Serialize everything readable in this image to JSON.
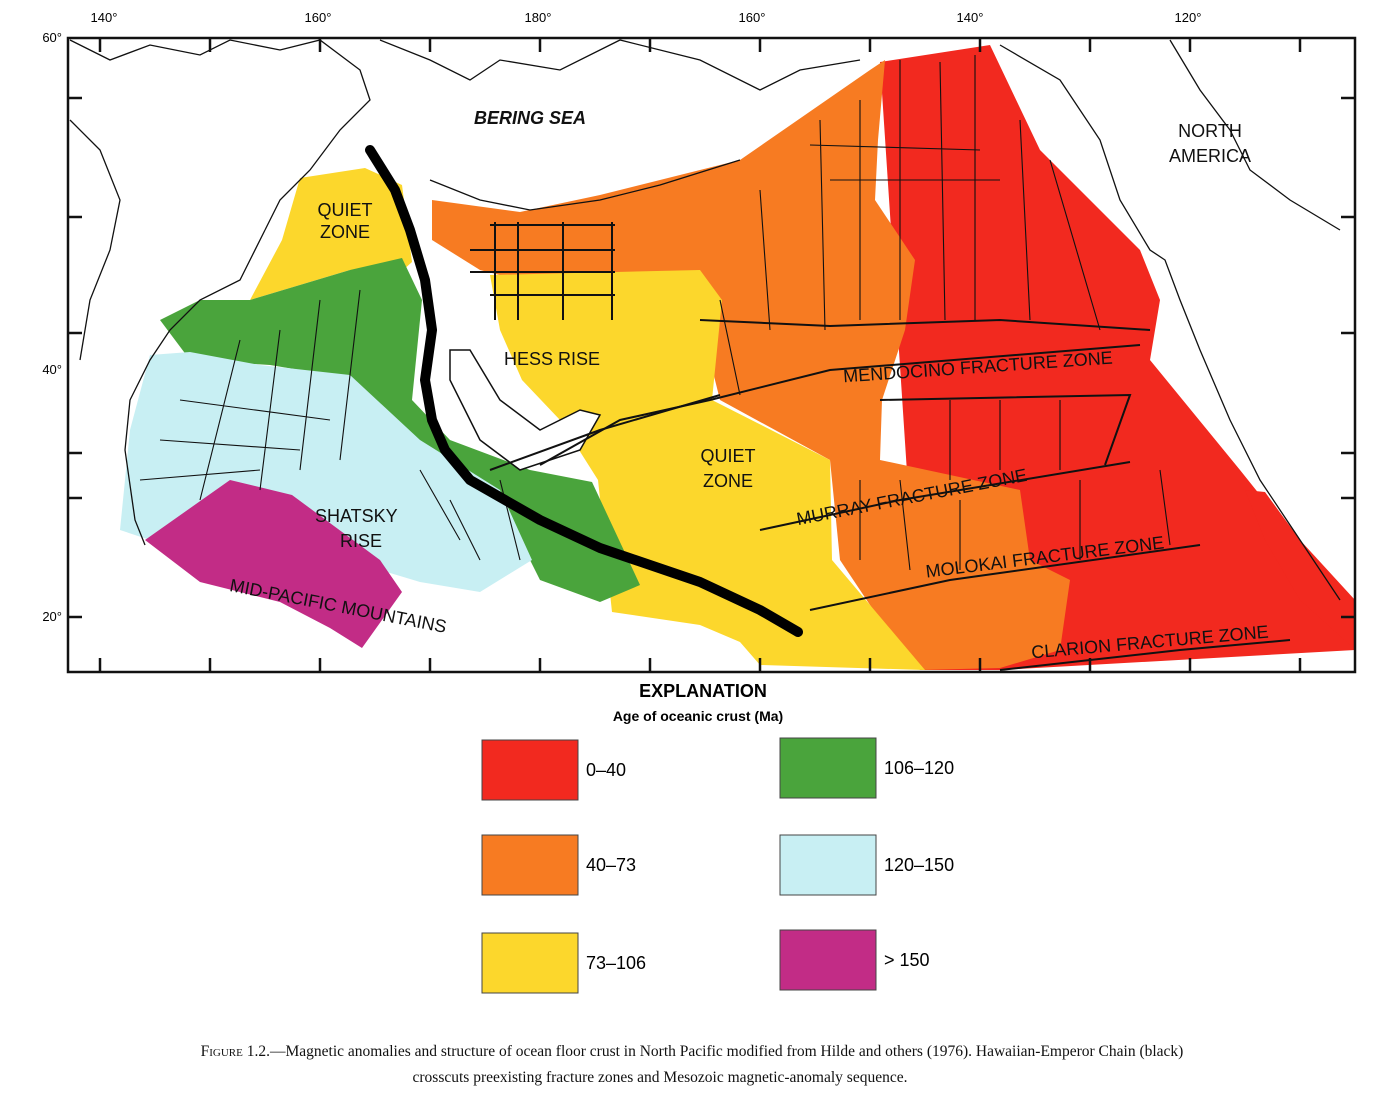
{
  "map": {
    "lon_labels": [
      "140°",
      "160°",
      "180°",
      "160°",
      "140°",
      "120°"
    ],
    "lat_labels": [
      "60°",
      "40°",
      "20°"
    ],
    "labels": [
      {
        "lines": [
          "BERING SEA"
        ]
      },
      {
        "lines": [
          "NORTH",
          "AMERICA"
        ]
      },
      {
        "lines": [
          "QUIET",
          "ZONE"
        ]
      },
      {
        "lines": [
          "HESS RISE"
        ]
      },
      {
        "lines": [
          "MENDOCINO FRACTURE ZONE"
        ]
      },
      {
        "lines": [
          "QUIET",
          "ZONE"
        ]
      },
      {
        "lines": [
          "MURRAY FRACTURE ZONE"
        ]
      },
      {
        "lines": [
          "SHATSKY",
          "RISE"
        ]
      },
      {
        "lines": [
          "MOLOKAI FRACTURE ZONE"
        ]
      },
      {
        "lines": [
          "CLARION FRACTURE ZONE"
        ]
      },
      {
        "lines": [
          "MID-PACIFIC MOUNTAINS"
        ]
      }
    ]
  },
  "explanation": {
    "title": "EXPLANATION",
    "subtitle": "Age of oceanic crust (Ma)",
    "items": [
      {
        "label": "0–40",
        "color": "#f2291f"
      },
      {
        "label": "40–73",
        "color": "#f77b22"
      },
      {
        "label": "73–106",
        "color": "#fcd72c"
      },
      {
        "label": "106–120",
        "color": "#4aa43c"
      },
      {
        "label": "120–150",
        "color": "#c8eff3"
      },
      {
        "label": "> 150",
        "color": "#c22c86"
      }
    ]
  },
  "caption": {
    "label": "Figure 1.2.",
    "lines": [
      "—Magnetic anomalies and structure of ocean floor crust in North Pacific modified from Hilde and others (1976). Hawaiian-Emperor Chain (black)",
      "crosscuts preexisting fracture zones and Mesozoic magnetic-anomaly sequence."
    ]
  }
}
